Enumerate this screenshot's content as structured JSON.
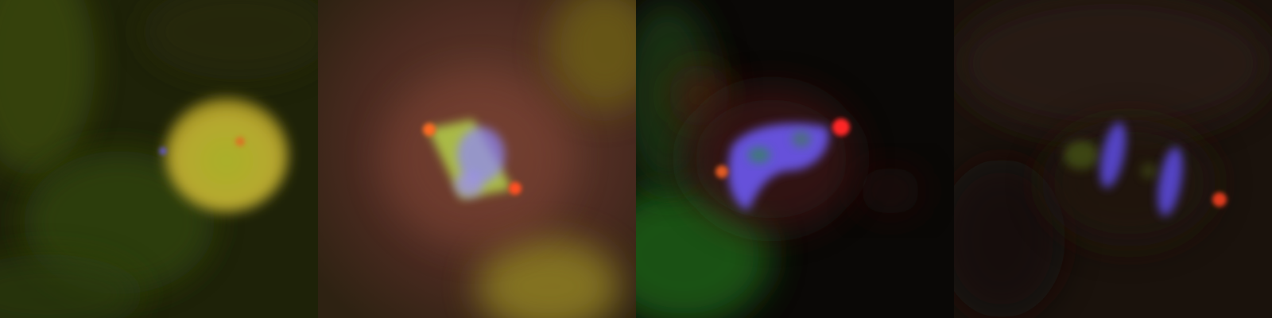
{
  "figure": {
    "panels": [
      {
        "id": "panel-1",
        "stage": "interphase",
        "background": "#2a2a08",
        "channels": [
          "green",
          "red",
          "blue"
        ]
      },
      {
        "id": "panel-2",
        "stage": "metaphase-spindle",
        "background": "#4a2a22",
        "channels": [
          "green",
          "red",
          "blue"
        ]
      },
      {
        "id": "panel-3",
        "stage": "prometaphase",
        "background": "#0a0a0a",
        "channels": [
          "green",
          "red",
          "blue"
        ]
      },
      {
        "id": "panel-4",
        "stage": "anaphase",
        "background": "#1e130e",
        "channels": [
          "green",
          "red",
          "blue"
        ]
      }
    ],
    "colors": {
      "dna": "#7a5cff",
      "centrosome": "#ff3a2a",
      "cytoplasm_green": "#9fae2a",
      "spindle_green": "#b6d84a"
    }
  }
}
